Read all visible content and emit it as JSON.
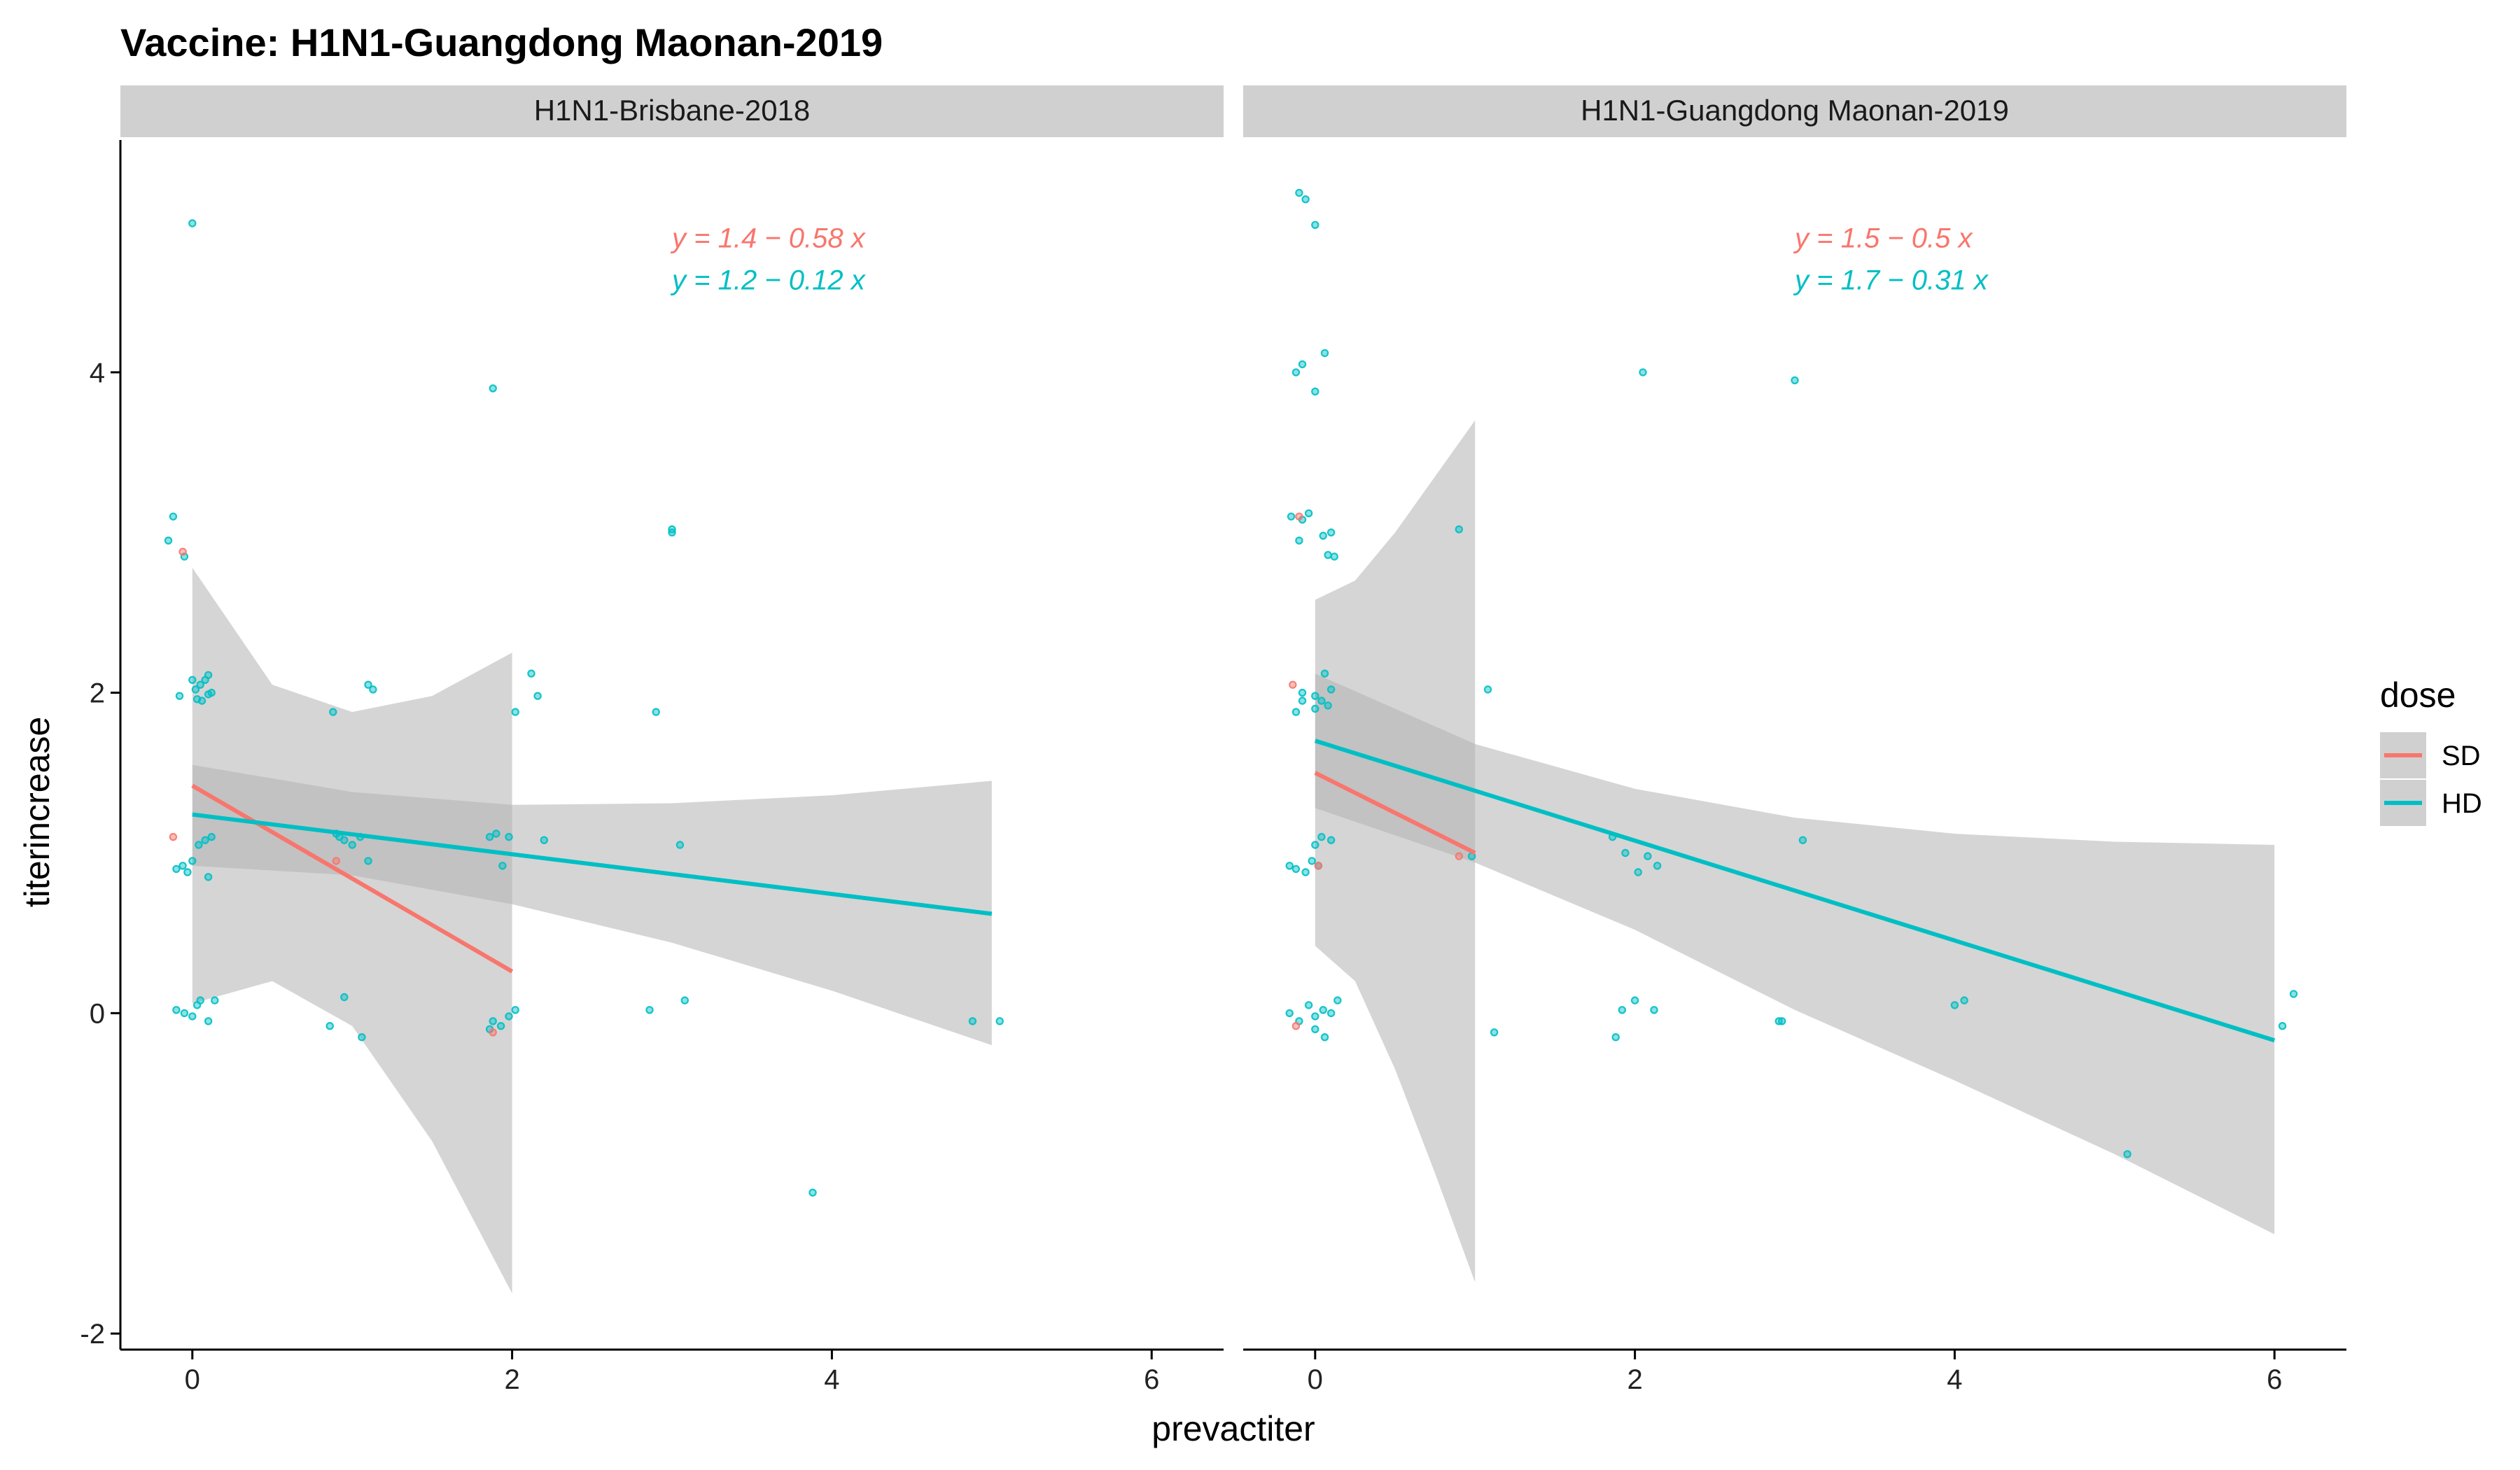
{
  "chart_data": {
    "type": "scatter",
    "title": "Vaccine: H1N1-Guangdong Maonan-2019",
    "xlabel": "prevactiter",
    "ylabel": "titerincrease",
    "xlim": [
      -0.45,
      6.45
    ],
    "ylim": [
      -2.1,
      5.45
    ],
    "x_ticks": [
      0,
      2,
      4,
      6
    ],
    "y_ticks": [
      -2,
      0,
      2,
      4
    ],
    "grid": false,
    "legend": {
      "title": "dose",
      "position": "right",
      "entries": [
        {
          "name": "SD",
          "color": "#F8766D"
        },
        {
          "name": "HD",
          "color": "#00BFC4"
        }
      ]
    },
    "panels": [
      {
        "strip": "H1N1-Brisbane-2018",
        "fits": [
          {
            "series": "SD",
            "color": "#F8766D",
            "equation": "y = 1.4 − 0.58 x",
            "x": [
              0,
              2
            ],
            "y": [
              1.42,
              0.26
            ],
            "band_x": [
              0,
              0.5,
              1,
              1.5,
              2
            ],
            "band_upper": [
              2.78,
              2.05,
              1.88,
              1.98,
              2.25
            ],
            "band_lower": [
              0.06,
              0.2,
              -0.08,
              -0.8,
              -1.75
            ]
          },
          {
            "series": "HD",
            "color": "#00BFC4",
            "equation": "y = 1.2 − 0.12 x",
            "x": [
              0,
              5
            ],
            "y": [
              1.24,
              0.62
            ],
            "band_x": [
              0,
              1,
              2,
              3,
              4,
              5
            ],
            "band_upper": [
              1.55,
              1.38,
              1.3,
              1.31,
              1.36,
              1.45
            ],
            "band_lower": [
              0.92,
              0.86,
              0.68,
              0.44,
              0.14,
              -0.2
            ]
          }
        ],
        "points": [
          {
            "series": "HD",
            "x": [
              -0.15,
              -0.12,
              -0.05,
              0.0,
              0.02,
              0.05,
              0.08,
              0.1,
              -0.08,
              0.03,
              0.06,
              0.1,
              0.0,
              0.12,
              -0.03,
              -0.1,
              -0.06,
              0.0,
              0.04,
              0.08,
              0.12,
              0.1,
              -0.1,
              -0.05,
              0.0,
              0.03,
              0.05,
              0.1,
              0.14,
              0.88,
              0.92,
              1.1,
              1.13,
              0.9,
              0.95,
              1.0,
              1.05,
              1.1,
              0.95,
              1.06,
              0.86,
              1.88,
              2.02,
              2.12,
              2.16,
              1.86,
              1.9,
              1.94,
              1.98,
              2.2,
              1.88,
              1.93,
              1.98,
              2.02,
              1.86,
              2.9,
              3.0,
              3.0,
              3.05,
              2.86,
              3.08,
              3.88,
              4.88,
              5.05
            ],
            "y": [
              2.95,
              3.1,
              2.85,
              4.93,
              2.02,
              2.05,
              2.08,
              2.11,
              1.98,
              1.96,
              1.95,
              1.99,
              2.08,
              2.0,
              0.88,
              0.9,
              0.92,
              0.95,
              1.05,
              1.08,
              1.1,
              0.85,
              0.02,
              0.0,
              -0.02,
              0.05,
              0.08,
              -0.05,
              0.08,
              1.88,
              1.1,
              2.05,
              2.02,
              1.12,
              1.08,
              1.05,
              1.1,
              0.95,
              0.1,
              -0.15,
              -0.08,
              3.9,
              1.88,
              2.12,
              1.98,
              1.1,
              1.12,
              0.92,
              1.1,
              1.08,
              -0.05,
              -0.08,
              -0.02,
              0.02,
              -0.1,
              1.88,
              3.0,
              3.02,
              1.05,
              0.02,
              0.08,
              -1.12,
              -0.05,
              -0.05
            ]
          },
          {
            "series": "SD",
            "x": [
              -0.12,
              -0.06,
              1.88,
              0.9
            ],
            "y": [
              1.1,
              2.88,
              -0.12,
              0.95
            ]
          }
        ]
      },
      {
        "strip": "H1N1-Guangdong Maonan-2019",
        "fits": [
          {
            "series": "SD",
            "color": "#F8766D",
            "equation": "y = 1.5 − 0.5 x",
            "x": [
              0,
              1
            ],
            "y": [
              1.5,
              1.0
            ],
            "band_x": [
              0,
              0.25,
              0.5,
              0.75,
              1
            ],
            "band_upper": [
              2.58,
              2.7,
              3.0,
              3.35,
              3.7
            ],
            "band_lower": [
              0.42,
              0.2,
              -0.35,
              -1.0,
              -1.68
            ]
          },
          {
            "series": "HD",
            "color": "#00BFC4",
            "equation": "y = 1.7 − 0.31 x",
            "x": [
              0,
              6
            ],
            "y": [
              1.7,
              -0.17
            ],
            "band_x": [
              0,
              1,
              2,
              3,
              4,
              5,
              6
            ],
            "band_upper": [
              2.12,
              1.68,
              1.4,
              1.22,
              1.12,
              1.07,
              1.05
            ],
            "band_lower": [
              1.28,
              0.94,
              0.52,
              0.02,
              -0.42,
              -0.88,
              -1.38
            ]
          }
        ],
        "points": [
          {
            "series": "HD",
            "x": [
              -0.1,
              -0.06,
              0.0,
              -0.12,
              0.06,
              -0.08,
              0.0,
              0.08,
              -0.15,
              -0.08,
              -0.04,
              0.05,
              0.1,
              0.12,
              -0.1,
              0.0,
              0.04,
              0.08,
              0.0,
              0.06,
              0.1,
              -0.16,
              -0.12,
              -0.06,
              0.0,
              0.04,
              0.1,
              -0.16,
              -0.1,
              -0.04,
              0.0,
              0.05,
              0.1,
              0.14,
              0.0,
              0.06,
              0.9,
              0.98,
              1.08,
              1.12,
              1.86,
              1.94,
              2.05,
              2.08,
              2.14,
              2.02,
              1.88,
              1.92,
              2.0,
              2.12,
              2.92,
              3.0,
              3.05,
              2.9,
              4.0,
              4.06,
              5.08,
              6.05,
              6.12,
              -0.08,
              -0.02,
              0.02,
              -0.12,
              -0.08
            ],
            "y": [
              5.12,
              5.08,
              4.92,
              4.0,
              4.12,
              4.05,
              3.88,
              2.86,
              3.1,
              3.08,
              3.12,
              2.98,
              3.0,
              2.85,
              2.95,
              1.98,
              1.95,
              1.92,
              1.9,
              2.12,
              2.02,
              0.92,
              0.9,
              0.88,
              1.05,
              1.1,
              1.08,
              0.0,
              -0.05,
              0.05,
              -0.02,
              0.02,
              0.0,
              0.08,
              -0.1,
              -0.15,
              3.02,
              0.98,
              2.02,
              -0.12,
              1.1,
              1.0,
              4.0,
              0.98,
              0.92,
              0.88,
              -0.15,
              0.02,
              0.08,
              0.02,
              -0.05,
              3.95,
              1.08,
              -0.05,
              0.05,
              0.08,
              -0.88,
              -0.08,
              0.12,
              1.95,
              0.95,
              0.92,
              1.88,
              2.0
            ]
          },
          {
            "series": "SD",
            "x": [
              -0.14,
              -0.1,
              0.02,
              -0.12,
              0.9
            ],
            "y": [
              2.05,
              3.1,
              0.92,
              -0.08,
              0.98
            ]
          }
        ]
      }
    ]
  }
}
